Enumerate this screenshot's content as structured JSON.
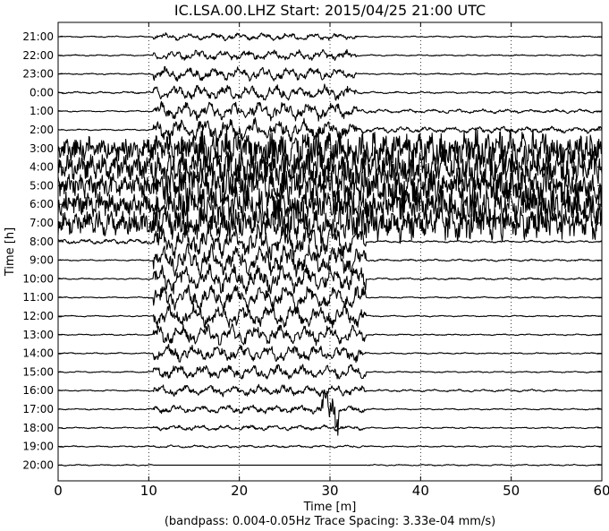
{
  "chart_data": {
    "type": "line",
    "subtype": "dayplot-seismogram",
    "title": "IC.LSA.00.LHZ  Start: 2015/04/25 21:00 UTC",
    "xlabel": "Time [m]",
    "ylabel": "Time [h]",
    "footer": "(bandpass: 0.004-0.05Hz  Trace Spacing: 3.33e-04 mm/s)",
    "xlim": [
      0,
      60
    ],
    "x_ticks": [
      "0",
      "10",
      "20",
      "30",
      "40",
      "50",
      "60"
    ],
    "x_tick_values": [
      0,
      10,
      20,
      30,
      40,
      50,
      60
    ],
    "vertical_gridlines_at": [
      10,
      20,
      30,
      40,
      50
    ],
    "grid": "dotted vertical",
    "trace_color": "#000000",
    "hour_labels": [
      "21:00",
      "22:00",
      "23:00",
      "0:00",
      "1:00",
      "2:00",
      "3:00",
      "4:00",
      "5:00",
      "6:00",
      "7:00",
      "8:00",
      "9:00",
      "10:00",
      "11:00",
      "12:00",
      "13:00",
      "14:00",
      "15:00",
      "16:00",
      "17:00",
      "18:00",
      "19:00",
      "20:00"
    ],
    "event": {
      "p_arrival_minute": 10.5,
      "surface_wave_start_minute": 29,
      "clipped_rows_start_index": 6,
      "clipped_rows_end_index": 10
    }
  }
}
